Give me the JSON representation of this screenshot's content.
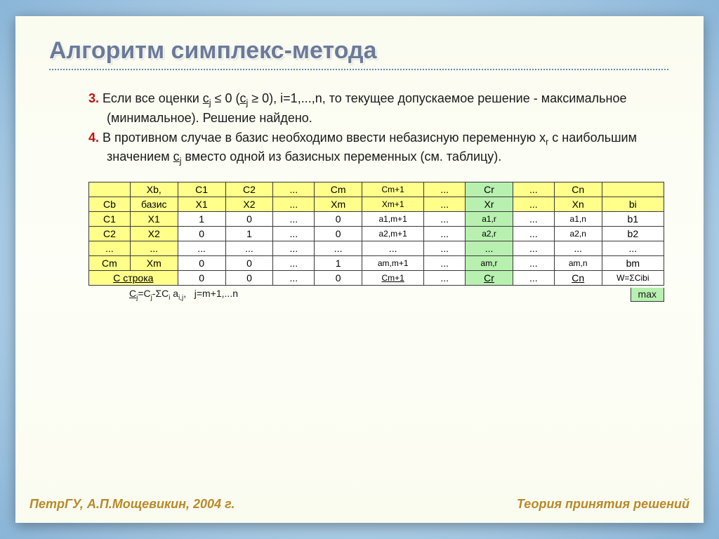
{
  "title": "Алгоритм симплекс-метода",
  "step3_num": "3.",
  "step3_a": " Если все оценки ",
  "step3_b": " ≤ 0 (",
  "step3_c": " ≥ 0), i=1,...,n, то текущее допускаемое решение - максимальное (минимальное). Решение найдено.",
  "step4_num": "4.",
  "step4_a": " В противном случае в базис необходимо ввести небазисную переменную x",
  "step4_b": " с наибольшим значением ",
  "step4_c": " вместо одной из базисных переменных (см. таблицу).",
  "cj": "c",
  "cj_sub": "j",
  "xr_sub": "r",
  "table": {
    "header1": [
      "",
      "Xb,",
      "C1",
      "C2",
      "...",
      "Cm",
      "Cm+1",
      "...",
      "Cr",
      "...",
      "Cn",
      ""
    ],
    "header2": [
      "Cb",
      "базис",
      "X1",
      "X2",
      "...",
      "Xm",
      "Xm+1",
      "...",
      "Xr",
      "...",
      "Xn",
      "bi"
    ],
    "rows": [
      [
        "C1",
        "X1",
        "1",
        "0",
        "...",
        "0",
        "a1,m+1",
        "...",
        "a1,r",
        "...",
        "a1,n",
        "b1"
      ],
      [
        "C2",
        "X2",
        "0",
        "1",
        "...",
        "0",
        "a2,m+1",
        "...",
        "a2,r",
        "...",
        "a2,n",
        "b2"
      ],
      [
        "...",
        "...",
        "...",
        "...",
        "...",
        "...",
        "...",
        "...",
        "...",
        "...",
        "...",
        "..."
      ],
      [
        "Cm",
        "Xm",
        "0",
        "0",
        "...",
        "1",
        "am,m+1",
        "...",
        "am,r",
        "...",
        "am,n",
        "bm"
      ]
    ],
    "crow_label": "C строка",
    "crow": [
      "0",
      "0",
      "...",
      "0",
      "Cm+1",
      "...",
      "Cr",
      "...",
      "Cn",
      "W=ΣCibi"
    ],
    "cell_colors": {
      "yellow": "#ffff8a",
      "green": "#b8f0b0",
      "white": "#ffffff"
    }
  },
  "formula_left": "Cj=Cj-ΣCi ai,j,   j=m+1,...n",
  "formula_right": "max",
  "footer_left": "ПетрГУ, А.П.Мощевикин, 2004 г.",
  "footer_right": "Теория принятия решений",
  "styling": {
    "title_color": "#6a7a9a",
    "step_number_color": "#c01010",
    "footer_color": "#b88a2a",
    "slide_bg": "#fbfcf0",
    "page_bg_center": "#d4e8f5",
    "page_bg_edge": "#8ab5d8",
    "border_color": "#3a3a3a",
    "title_fontsize": 34,
    "body_fontsize": 18,
    "table_fontsize": 14,
    "subscript_fontsize": 12
  }
}
